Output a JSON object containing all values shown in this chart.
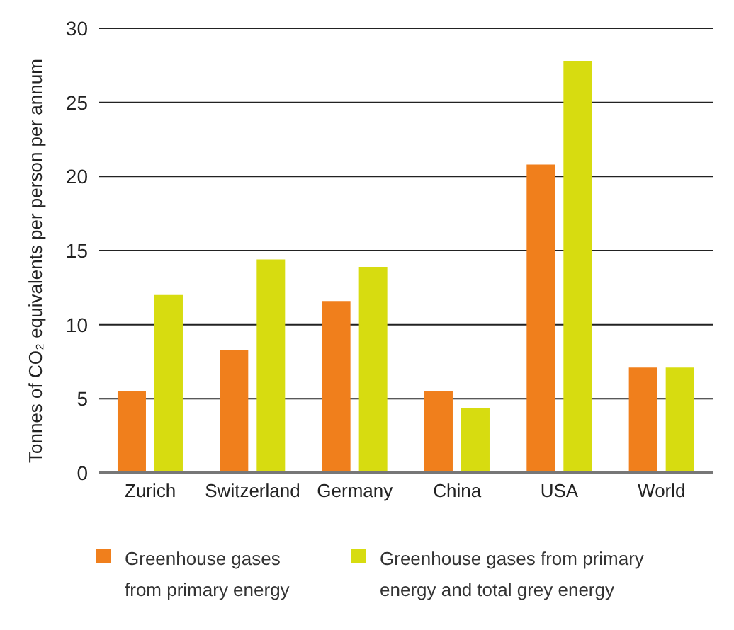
{
  "chart_data": {
    "type": "bar",
    "ylabel": "Tonnes of CO₂ equivalents per person per annum",
    "categories": [
      "Zurich",
      "Switzerland",
      "Germany",
      "China",
      "USA",
      "World"
    ],
    "series": [
      {
        "name": "Greenhouse gases from primary energy",
        "color": "#f07f1c",
        "values": [
          5.5,
          8.3,
          11.6,
          5.5,
          20.8,
          7.1
        ]
      },
      {
        "name": "Greenhouse gases from primary energy and total grey energy",
        "color": "#d7dc10",
        "values": [
          12,
          14.4,
          13.9,
          4.4,
          27.8,
          7.1
        ]
      }
    ],
    "ylim": [
      0,
      30
    ],
    "yticks": [
      0,
      5,
      10,
      15,
      20,
      25,
      30
    ],
    "grid": "y",
    "legend": "bottom"
  }
}
